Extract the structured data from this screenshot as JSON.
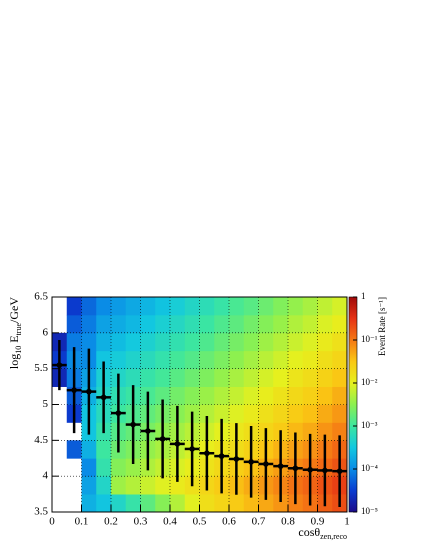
{
  "chart_data": {
    "type": "heatmap",
    "ylabel": [
      "log",
      "10",
      "E",
      "true",
      "/GeV"
    ],
    "xlabel": [
      "cosθ",
      "zen,reco"
    ],
    "xlim": [
      0,
      1
    ],
    "ylim": [
      3.5,
      6.5
    ],
    "xticks": [
      0,
      0.1,
      0.2,
      0.3,
      0.4,
      0.5,
      0.6,
      0.7,
      0.8,
      0.9,
      1
    ],
    "yticks": [
      3.5,
      4,
      4.5,
      5,
      5.5,
      6,
      6.5
    ],
    "grid": true,
    "xbins": [
      0,
      0.05,
      0.1,
      0.15,
      0.2,
      0.25,
      0.3,
      0.35,
      0.4,
      0.45,
      0.5,
      0.55,
      0.6,
      0.65,
      0.7,
      0.75,
      0.8,
      0.85,
      0.9,
      0.95,
      1
    ],
    "ybins": [
      3.5,
      3.75,
      4,
      4.25,
      4.5,
      4.75,
      5,
      5.25,
      5.5,
      5.75,
      6,
      6.25,
      6.5
    ],
    "z": [
      [
        null,
        null,
        0.0002,
        0.0003,
        0.0005,
        0.00087,
        0.0016,
        0.0029,
        0.0052,
        0.0095,
        0.017,
        0.022,
        0.029,
        0.038,
        0.05,
        0.066,
        0.088,
        0.11,
        0.15,
        0.2
      ],
      [
        null,
        null,
        0.00015,
        0.0005,
        0.004,
        0.0052,
        0.0069,
        0.0091,
        0.012,
        0.016,
        0.021,
        0.028,
        0.036,
        0.048,
        0.063,
        0.083,
        0.11,
        0.14,
        0.19,
        0.25
      ],
      [
        null,
        null,
        0.0001,
        0.0008,
        0.0028,
        0.0037,
        0.0049,
        0.0065,
        0.0085,
        0.011,
        0.015,
        0.02,
        0.026,
        0.034,
        0.045,
        0.059,
        0.078,
        0.099,
        0.13,
        0.18
      ],
      [
        null,
        5e-05,
        0.0002,
        0.001,
        0.002,
        0.0026,
        0.0035,
        0.0046,
        0.006,
        0.008,
        0.011,
        0.014,
        0.018,
        0.024,
        0.032,
        0.042,
        0.055,
        0.07,
        0.095,
        0.13
      ],
      [
        null,
        null,
        0.0003,
        0.0008,
        0.0014,
        0.0018,
        0.0024,
        0.0032,
        0.0042,
        0.0056,
        0.0074,
        0.0098,
        0.013,
        0.017,
        0.022,
        0.029,
        0.039,
        0.049,
        0.067,
        0.088
      ],
      [
        null,
        3e-05,
        0.0003,
        0.0006,
        0.001,
        0.0013,
        0.0017,
        0.0023,
        0.003,
        0.004,
        0.0053,
        0.007,
        0.009,
        0.012,
        0.016,
        0.021,
        0.028,
        0.035,
        0.048,
        0.063
      ],
      [
        null,
        5e-05,
        0.0002,
        0.0005,
        0.00072,
        0.00094,
        0.0012,
        0.0016,
        0.0022,
        0.0029,
        0.0038,
        0.005,
        0.0065,
        0.0086,
        0.011,
        0.015,
        0.02,
        0.025,
        0.034,
        0.045
      ],
      [
        2e-05,
        8e-05,
        0.00015,
        0.0004,
        0.0005,
        0.00066,
        0.00087,
        0.0011,
        0.0015,
        0.002,
        0.0026,
        0.0035,
        0.0045,
        0.006,
        0.0079,
        0.01,
        0.014,
        0.018,
        0.024,
        0.032
      ],
      [
        3e-05,
        0.0001,
        0.0001,
        0.0003,
        0.00036,
        0.00046,
        0.00061,
        0.00081,
        0.0011,
        0.0014,
        0.0019,
        0.0025,
        0.0032,
        0.0043,
        0.0056,
        0.0074,
        0.0098,
        0.012,
        0.017,
        0.022
      ],
      [
        2e-05,
        8e-05,
        0.0001,
        0.0002,
        0.00025,
        0.00033,
        0.00043,
        0.00057,
        0.00076,
        0.001,
        0.0013,
        0.0018,
        0.0023,
        0.003,
        0.004,
        0.0052,
        0.0069,
        0.0088,
        0.012,
        0.016
      ],
      [
        null,
        5e-05,
        8e-05,
        0.00015,
        0.00018,
        0.00023,
        0.00031,
        0.00041,
        0.00054,
        0.00072,
        0.00095,
        0.0013,
        0.0016,
        0.0022,
        0.0028,
        0.0037,
        0.005,
        0.0063,
        0.0086,
        0.011
      ],
      [
        null,
        3e-05,
        6e-05,
        0.0001,
        0.00013,
        0.00017,
        0.00022,
        0.00029,
        0.00038,
        0.00051,
        0.00067,
        0.0009,
        0.0012,
        0.0015,
        0.002,
        0.0027,
        0.0035,
        0.0045,
        0.0061,
        0.008
      ]
    ],
    "colorbar": {
      "label": "Event Rate [s⁻¹]",
      "lim": [
        1e-05,
        1
      ],
      "log": true,
      "ticks": [
        1,
        {
          "value": 0.1,
          "label": "10⁻¹"
        },
        {
          "value": 0.01,
          "label": "10⁻²"
        },
        {
          "value": 0.001,
          "label": "10⁻³"
        },
        {
          "value": 0.0001,
          "label": "10⁻⁴"
        },
        {
          "value": 1e-05,
          "label": "10⁻⁵"
        }
      ],
      "palette": [
        "#1c0a8a",
        "#0a3cd0",
        "#0a8ce6",
        "#12c8e0",
        "#3ce6a0",
        "#8cf050",
        "#e6f01e",
        "#fac814",
        "#f57814",
        "#e63214",
        "#a00a0a"
      ]
    },
    "profile": {
      "color": "#000000",
      "xerr": 0.025,
      "x": [
        0.025,
        0.075,
        0.125,
        0.175,
        0.225,
        0.275,
        0.325,
        0.375,
        0.425,
        0.475,
        0.525,
        0.575,
        0.625,
        0.675,
        0.725,
        0.775,
        0.825,
        0.875,
        0.925,
        0.975
      ],
      "values": [
        5.55,
        5.2,
        5.18,
        5.1,
        4.88,
        4.72,
        4.63,
        4.52,
        4.45,
        4.38,
        4.32,
        4.28,
        4.24,
        4.2,
        4.17,
        4.14,
        4.11,
        4.09,
        4.08,
        4.07
      ],
      "errors": [
        0.35,
        0.6,
        0.6,
        0.5,
        0.55,
        0.55,
        0.55,
        0.55,
        0.53,
        0.52,
        0.52,
        0.52,
        0.5,
        0.5,
        0.5,
        0.5,
        0.5,
        0.5,
        0.5,
        0.5
      ]
    }
  }
}
